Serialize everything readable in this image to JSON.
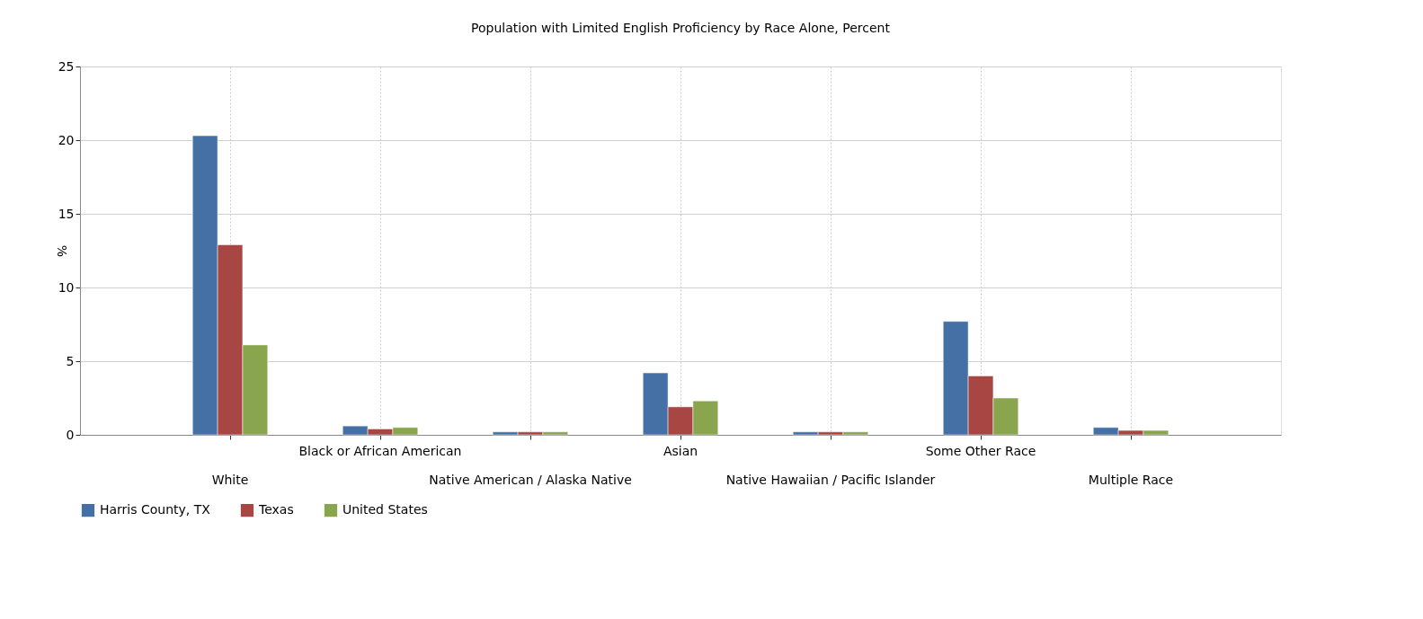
{
  "chart_data": {
    "type": "bar",
    "title": "Population with Limited English Proficiency by Race Alone, Percent",
    "ylabel": "%",
    "categories": [
      "White",
      "Black or African American",
      "Native American / Alaska Native",
      "Asian",
      "Native Hawaiian / Pacific Islander",
      "Some Other Race",
      "Multiple Race"
    ],
    "series": [
      {
        "name": "Harris County, TX",
        "color": "#4570a5",
        "values": [
          20.3,
          0.6,
          0.2,
          4.2,
          0.2,
          7.7,
          0.5
        ]
      },
      {
        "name": "Texas",
        "color": "#a84644",
        "values": [
          12.9,
          0.4,
          0.2,
          1.9,
          0.2,
          4.0,
          0.3
        ]
      },
      {
        "name": "United States",
        "color": "#89a54e",
        "values": [
          6.1,
          0.5,
          0.2,
          2.3,
          0.2,
          2.5,
          0.3
        ]
      }
    ],
    "ylim": [
      0,
      25
    ],
    "yticks": [
      0,
      5,
      10,
      15,
      20,
      25
    ],
    "grid": true,
    "legend": "bottom"
  }
}
